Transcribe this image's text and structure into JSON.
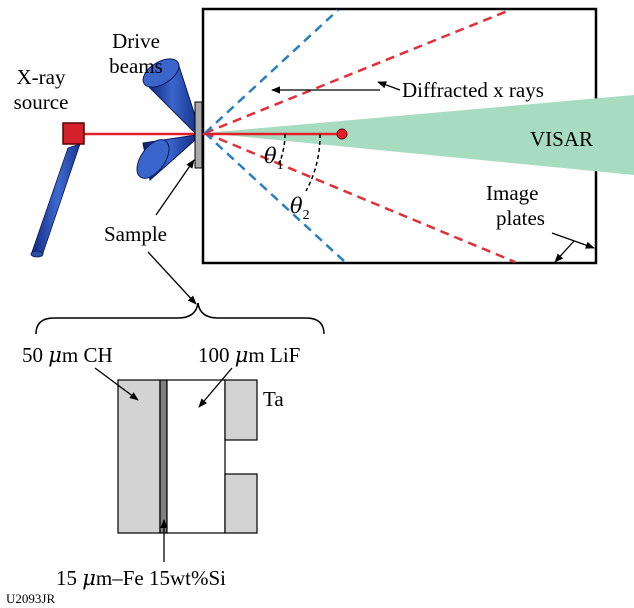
{
  "labels": {
    "xray_source_line1": "X-ray",
    "xray_source_line2": "source",
    "drive_beams_line1": "Drive",
    "drive_beams_line2": "beams",
    "diffracted": "Diffracted x rays",
    "visar": "VISAR",
    "theta1_sym": "θ",
    "theta1_sub": "1",
    "theta2_sym": "θ",
    "theta2_sub": "2",
    "image_plates_line1": "Image",
    "image_plates_line2": "plates",
    "sample": "Sample",
    "ch_prefix": "50 ",
    "ch_mu": "μ",
    "ch_suffix": "m CH",
    "lif_prefix": "100 ",
    "lif_mu": "μ",
    "lif_suffix": "m LiF",
    "ta": "Ta",
    "fe_prefix": "15 ",
    "fe_mu": "μ",
    "fe_suffix": "m–Fe 15wt%Si",
    "figure_id": "U2093JR"
  },
  "colors": {
    "xray_beam": "#e0202a",
    "xray_source": "#d4202a",
    "drive_beam_blue": "#2a4fa8",
    "visar_green": "#a8dcc0",
    "diffracted_red": "#e0303a",
    "diffracted_blue": "#2a7fc0",
    "sample_gray": "#d3d3d3",
    "fe_layer": "#7f7f7f"
  }
}
